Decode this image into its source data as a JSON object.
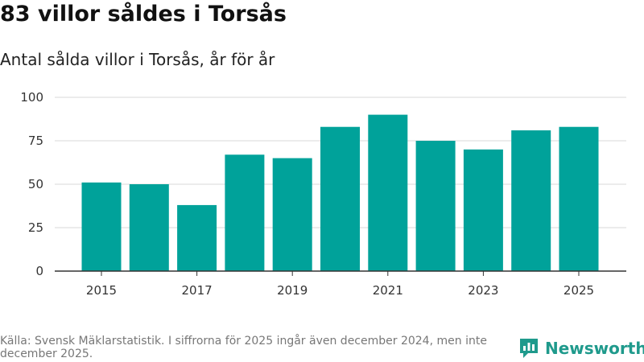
{
  "title": "83 villor såldes i Torsås",
  "subtitle": "Antal sålda villor i Torsås, år för år",
  "source": "Källa: Svensk Mäklarstatistik. I siffrorna för 2025 ingår även december 2024, men inte december 2025.",
  "brand": {
    "name": "Newsworthy",
    "color": "#1f9a8c",
    "icon": "newsworthy-logo-icon"
  },
  "colors": {
    "bar": "#00a29a",
    "grid": "#d9d9d9",
    "axis": "#333333"
  },
  "chart_data": {
    "type": "bar",
    "title": "83 villor såldes i Torsås",
    "subtitle": "Antal sålda villor i Torsås, år för år",
    "xlabel": "",
    "ylabel": "",
    "categories": [
      "2015",
      "2016",
      "2017",
      "2018",
      "2019",
      "2020",
      "2021",
      "2022",
      "2023",
      "2024",
      "2025"
    ],
    "values": [
      51,
      50,
      38,
      67,
      65,
      83,
      90,
      75,
      70,
      81,
      83
    ],
    "xticks": [
      "2015",
      "2017",
      "2019",
      "2021",
      "2023",
      "2025"
    ],
    "yticks": [
      0,
      25,
      50,
      75,
      100
    ],
    "ylim": [
      0,
      100
    ],
    "grid": true,
    "legend": "none"
  }
}
